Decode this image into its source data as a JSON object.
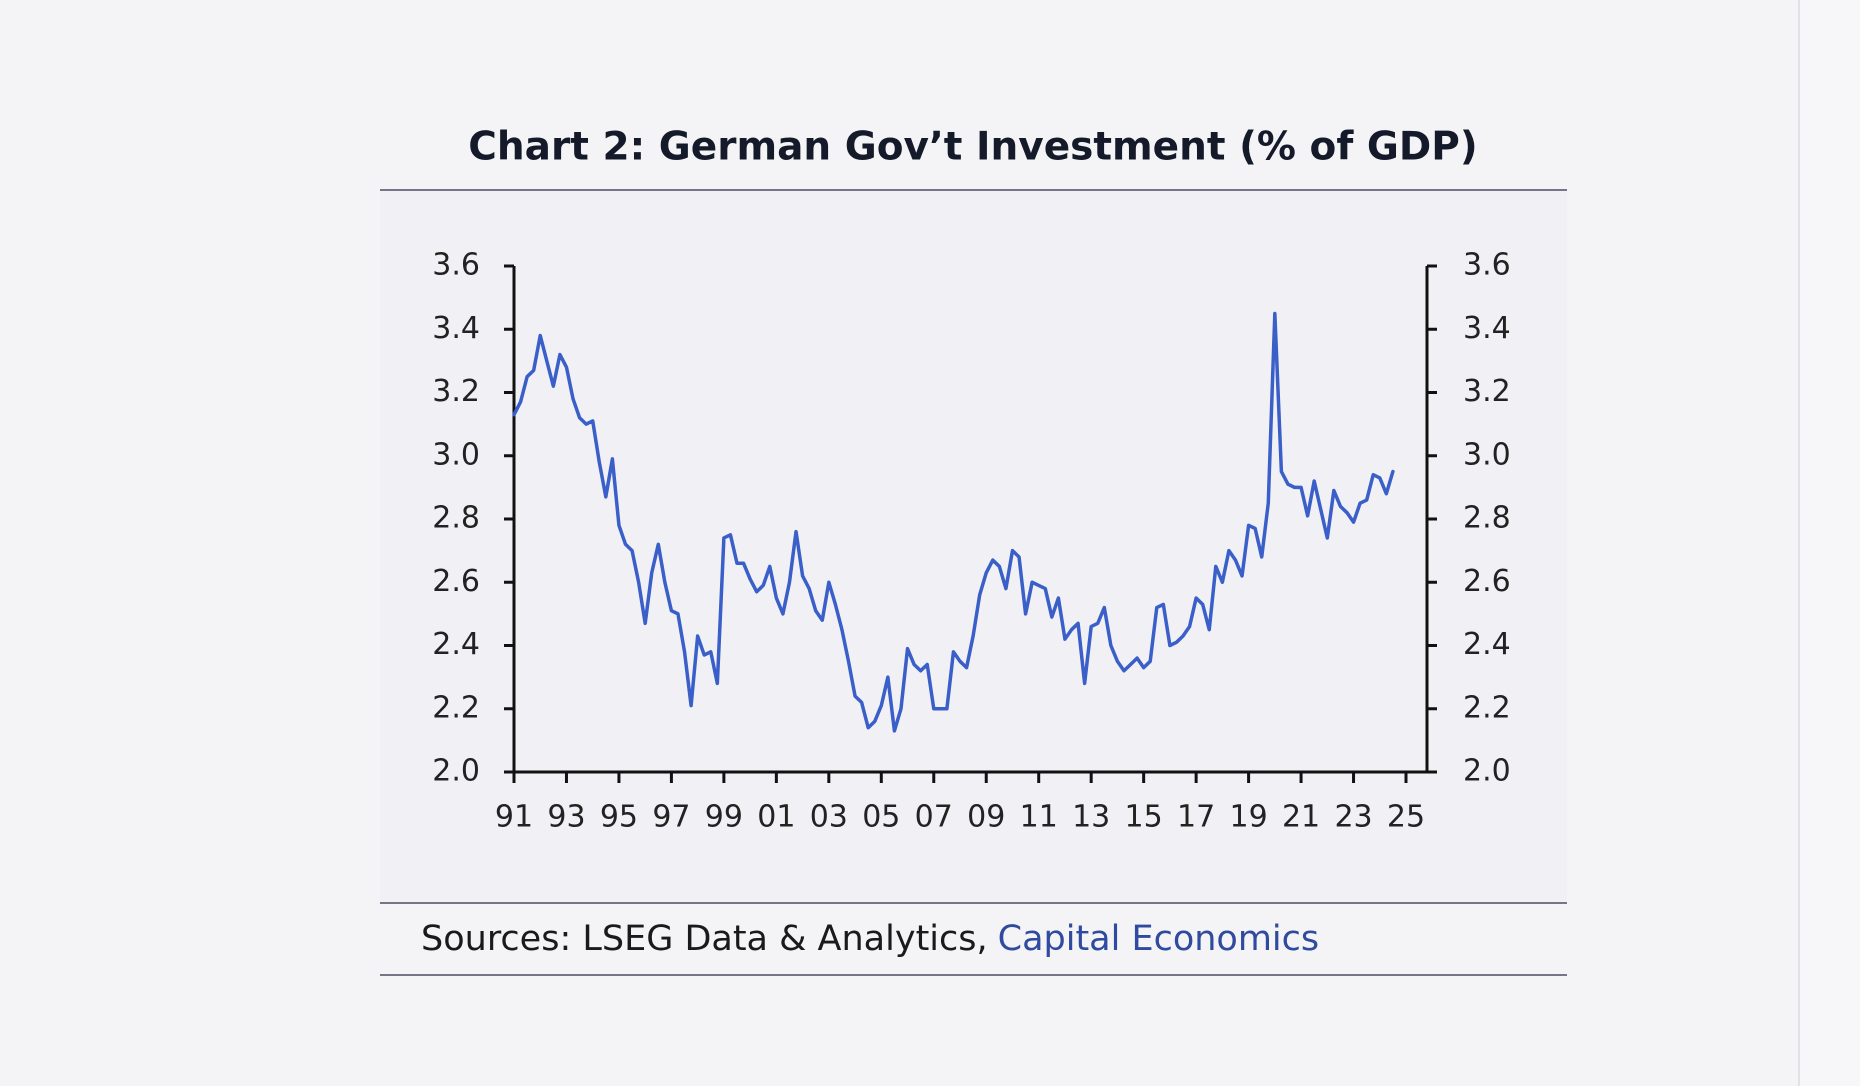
{
  "chart_data": {
    "type": "line",
    "title": "Chart 2: German Gov’t Investment (% of GDP)",
    "sources": "Sources: LSEG Data & Analytics,",
    "source_link": "Capital Economics",
    "color": "#3a5fc8",
    "x": [
      1991,
      1991.25,
      1991.5,
      1991.75,
      1992,
      1992.25,
      1992.5,
      1992.75,
      1993,
      1993.25,
      1993.5,
      1993.75,
      1994,
      1994.25,
      1994.5,
      1994.75,
      1995,
      1995.25,
      1995.5,
      1995.75,
      1996,
      1996.25,
      1996.5,
      1996.75,
      1997,
      1997.25,
      1997.5,
      1997.75,
      1998,
      1998.25,
      1998.5,
      1998.75,
      1999,
      1999.25,
      1999.5,
      1999.75,
      2000,
      2000.25,
      2000.5,
      2000.75,
      2001,
      2001.25,
      2001.5,
      2001.75,
      2002,
      2002.25,
      2002.5,
      2002.75,
      2003,
      2003.25,
      2003.5,
      2003.75,
      2004,
      2004.25,
      2004.5,
      2004.75,
      2005,
      2005.25,
      2005.5,
      2005.75,
      2006,
      2006.25,
      2006.5,
      2006.75,
      2007,
      2007.25,
      2007.5,
      2007.75,
      2008,
      2008.25,
      2008.5,
      2008.75,
      2009,
      2009.25,
      2009.5,
      2009.75,
      2010,
      2010.25,
      2010.5,
      2010.75,
      2011,
      2011.25,
      2011.5,
      2011.75,
      2012,
      2012.25,
      2012.5,
      2012.75,
      2013,
      2013.25,
      2013.5,
      2013.75,
      2014,
      2014.25,
      2014.5,
      2014.75,
      2015,
      2015.25,
      2015.5,
      2015.75,
      2016,
      2016.25,
      2016.5,
      2016.75,
      2017,
      2017.25,
      2017.5,
      2017.75,
      2018,
      2018.25,
      2018.5,
      2018.75,
      2019,
      2019.25,
      2019.5,
      2019.75,
      2020,
      2020.25,
      2020.5,
      2020.75,
      2021,
      2021.25,
      2021.5,
      2021.75,
      2022,
      2022.25,
      2022.5,
      2022.75,
      2023,
      2023.25,
      2023.5,
      2023.75,
      2024,
      2024.25,
      2024.5
    ],
    "values": [
      3.13,
      3.17,
      3.25,
      3.27,
      3.38,
      3.3,
      3.22,
      3.32,
      3.28,
      3.18,
      3.12,
      3.1,
      3.11,
      2.98,
      2.87,
      2.99,
      2.78,
      2.72,
      2.7,
      2.6,
      2.47,
      2.63,
      2.72,
      2.6,
      2.51,
      2.5,
      2.38,
      2.21,
      2.43,
      2.37,
      2.38,
      2.28,
      2.74,
      2.75,
      2.66,
      2.66,
      2.61,
      2.57,
      2.59,
      2.65,
      2.55,
      2.5,
      2.6,
      2.76,
      2.62,
      2.58,
      2.51,
      2.48,
      2.6,
      2.53,
      2.45,
      2.35,
      2.24,
      2.22,
      2.14,
      2.16,
      2.21,
      2.3,
      2.13,
      2.2,
      2.39,
      2.34,
      2.32,
      2.34,
      2.2,
      2.2,
      2.2,
      2.38,
      2.35,
      2.33,
      2.43,
      2.56,
      2.63,
      2.67,
      2.65,
      2.58,
      2.7,
      2.68,
      2.5,
      2.6,
      2.59,
      2.58,
      2.49,
      2.55,
      2.42,
      2.45,
      2.47,
      2.28,
      2.46,
      2.47,
      2.52,
      2.4,
      2.35,
      2.32,
      2.34,
      2.36,
      2.33,
      2.35,
      2.52,
      2.53,
      2.4,
      2.41,
      2.43,
      2.46,
      2.55,
      2.53,
      2.45,
      2.65,
      2.6,
      2.7,
      2.67,
      2.62,
      2.78,
      2.77,
      2.68,
      2.85,
      3.45,
      2.95,
      2.91,
      2.9,
      2.9,
      2.81,
      2.92,
      2.83,
      2.74,
      2.89,
      2.84,
      2.82,
      2.79,
      2.85,
      2.86,
      2.94,
      2.93,
      2.88,
      2.95
    ],
    "xlim": [
      1991,
      2025.8
    ],
    "xticks": [
      {
        "value": 1991,
        "label": "91"
      },
      {
        "value": 1993,
        "label": "93"
      },
      {
        "value": 1995,
        "label": "95"
      },
      {
        "value": 1997,
        "label": "97"
      },
      {
        "value": 1999,
        "label": "99"
      },
      {
        "value": 2001,
        "label": "01"
      },
      {
        "value": 2003,
        "label": "03"
      },
      {
        "value": 2005,
        "label": "05"
      },
      {
        "value": 2007,
        "label": "07"
      },
      {
        "value": 2009,
        "label": "09"
      },
      {
        "value": 2011,
        "label": "11"
      },
      {
        "value": 2013,
        "label": "13"
      },
      {
        "value": 2015,
        "label": "15"
      },
      {
        "value": 2017,
        "label": "17"
      },
      {
        "value": 2019,
        "label": "19"
      },
      {
        "value": 2021,
        "label": "21"
      },
      {
        "value": 2023,
        "label": "23"
      },
      {
        "value": 2025,
        "label": "25"
      }
    ],
    "ylim": [
      2.0,
      3.6
    ],
    "yticks": [
      {
        "value": 2,
        "label": "2.0"
      },
      2.2,
      2.4,
      2.6,
      2.8,
      {
        "value": 3,
        "label": "3.0"
      },
      3.2,
      3.4,
      3.6
    ],
    "y2lim": [
      2.0,
      3.6
    ],
    "y2ticks": [
      {
        "value": 2,
        "label": "2.0"
      },
      2.2,
      2.4,
      2.6,
      2.8,
      {
        "value": 3,
        "label": "3.0"
      },
      3.2,
      3.4,
      3.6
    ]
  }
}
